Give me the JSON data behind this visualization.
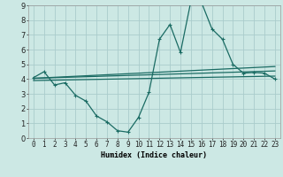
{
  "title": "",
  "xlabel": "Humidex (Indice chaleur)",
  "bg_color": "#cce8e4",
  "grid_color": "#aacccc",
  "line_color": "#1a6b63",
  "xlim": [
    -0.5,
    23.5
  ],
  "ylim": [
    0,
    9
  ],
  "xticks": [
    0,
    1,
    2,
    3,
    4,
    5,
    6,
    7,
    8,
    9,
    10,
    11,
    12,
    13,
    14,
    15,
    16,
    17,
    18,
    19,
    20,
    21,
    22,
    23
  ],
  "yticks": [
    0,
    1,
    2,
    3,
    4,
    5,
    6,
    7,
    8,
    9
  ],
  "line1_x": [
    0,
    1,
    2,
    3,
    4,
    5,
    6,
    7,
    8,
    9,
    10,
    11,
    12,
    13,
    14,
    15,
    16,
    17,
    18,
    19,
    20,
    21,
    22,
    23
  ],
  "line1_y": [
    4.1,
    4.5,
    3.6,
    3.75,
    2.9,
    2.5,
    1.5,
    1.1,
    0.5,
    0.4,
    1.4,
    3.1,
    6.7,
    7.7,
    5.8,
    9.3,
    9.2,
    7.4,
    6.7,
    5.0,
    4.4,
    4.45,
    4.4,
    4.0
  ],
  "line2_x": [
    0,
    23
  ],
  "line2_y": [
    4.05,
    4.85
  ],
  "line3_x": [
    0,
    23
  ],
  "line3_y": [
    4.05,
    4.55
  ],
  "line4_x": [
    0,
    23
  ],
  "line4_y": [
    3.9,
    4.2
  ],
  "markersize": 3,
  "linewidth": 0.9,
  "xlabel_fontsize": 6,
  "tick_fontsize": 5.5
}
